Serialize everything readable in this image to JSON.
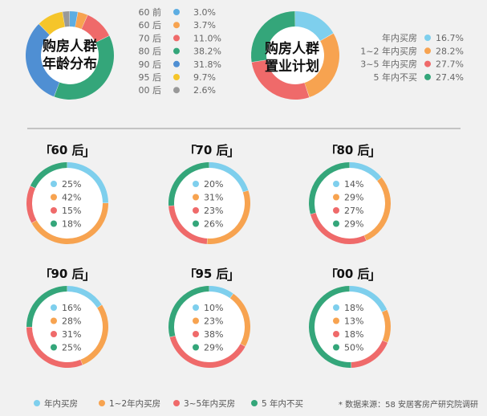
{
  "colors": {
    "c1": "#7ecfed",
    "c2": "#f7a350",
    "c3": "#ef6a6a",
    "c4": "#34a67a",
    "age_60q": "#5dade2",
    "age_60h": "#f7a350",
    "age_70h": "#ef6a6a",
    "age_80h": "#34a67a",
    "age_90h": "#4f8fd3",
    "age_95h": "#f5c52a",
    "age_00h": "#999999",
    "divider": "#aaaaaa"
  },
  "chart_data": [
    {
      "type": "pie",
      "title_line1": "购房人群",
      "title_line2": "年龄分布",
      "categories": [
        "60 前",
        "60 后",
        "70 后",
        "80 后",
        "90 后",
        "95 后",
        "00 后"
      ],
      "values": [
        3.0,
        3.7,
        11.0,
        38.2,
        31.8,
        9.7,
        2.6
      ],
      "labels": [
        "3.0%",
        "3.7%",
        "11.0%",
        "38.2%",
        "31.8%",
        "9.7%",
        "2.6%"
      ],
      "legend_position": "right"
    },
    {
      "type": "pie",
      "title_line1": "购房人群",
      "title_line2": "置业计划",
      "categories": [
        "年内买房",
        "1~2 年内买房",
        "3~5 年内买房",
        "5 年内不买"
      ],
      "values": [
        16.7,
        28.2,
        27.7,
        27.4
      ],
      "labels": [
        "16.7%",
        "28.2%",
        "27.7%",
        "27.4%"
      ],
      "legend_position": "right"
    },
    {
      "type": "pie",
      "group": "60 后",
      "categories": [
        "年内买房",
        "1~2年内买房",
        "3~5年内买房",
        "5 年内不买"
      ],
      "values": [
        25,
        42,
        15,
        18
      ],
      "labels": [
        "25%",
        "42%",
        "15%",
        "18%"
      ]
    },
    {
      "type": "pie",
      "group": "70 后",
      "categories": [
        "年内买房",
        "1~2年内买房",
        "3~5年内买房",
        "5 年内不买"
      ],
      "values": [
        20,
        31,
        23,
        26
      ],
      "labels": [
        "20%",
        "31%",
        "23%",
        "26%"
      ]
    },
    {
      "type": "pie",
      "group": "80 后",
      "categories": [
        "年内买房",
        "1~2年内买房",
        "3~5年内买房",
        "5 年内不买"
      ],
      "values": [
        14,
        29,
        27,
        29
      ],
      "labels": [
        "14%",
        "29%",
        "27%",
        "29%"
      ]
    },
    {
      "type": "pie",
      "group": "90 后",
      "categories": [
        "年内买房",
        "1~2年内买房",
        "3~5年内买房",
        "5 年内不买"
      ],
      "values": [
        16,
        28,
        31,
        25
      ],
      "labels": [
        "16%",
        "28%",
        "31%",
        "25%"
      ]
    },
    {
      "type": "pie",
      "group": "95 后",
      "categories": [
        "年内买房",
        "1~2年内买房",
        "3~5年内买房",
        "5 年内不买"
      ],
      "values": [
        10,
        23,
        38,
        29
      ],
      "labels": [
        "10%",
        "23%",
        "38%",
        "29%"
      ]
    },
    {
      "type": "pie",
      "group": "00 后",
      "categories": [
        "年内买房",
        "1~2年内买房",
        "3~5年内买房",
        "5 年内不买"
      ],
      "values": [
        18,
        13,
        18,
        50
      ],
      "labels": [
        "18%",
        "13%",
        "18%",
        "50%"
      ]
    }
  ],
  "bottom_legend": [
    "年内买房",
    "1~2年内买房",
    "3~5年内买房",
    "5 年内不买"
  ],
  "source": "* 数据来源：58 安居客房产研究院调研"
}
